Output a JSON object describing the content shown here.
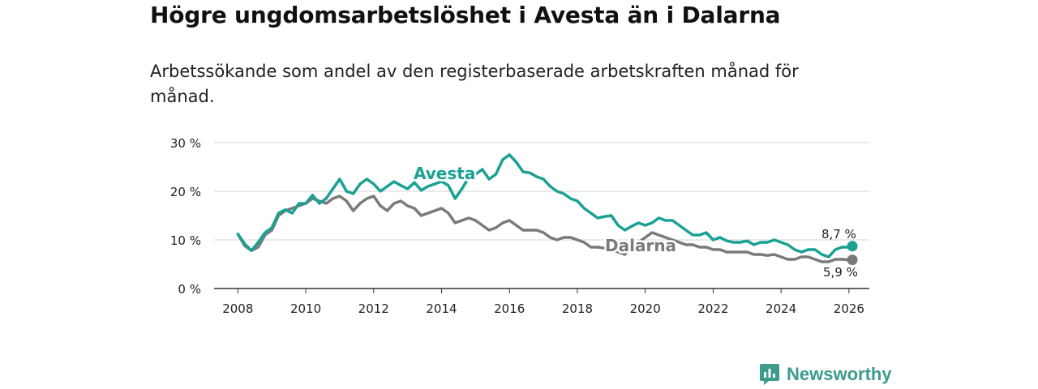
{
  "title": "Högre ungdomsarbetslöshet i Avesta än i Dalarna",
  "subtitle": "Arbetssökande som andel av den registerbaserade arbetskraften månad för månad.",
  "brand": {
    "name": "Newsworthy"
  },
  "colors": {
    "avesta": "#1aa194",
    "dalarna": "#7a7a7a",
    "grid": "#d6d6d6",
    "axis": "#333333",
    "text": "#222222"
  },
  "chart_data": {
    "type": "line",
    "title": "Högre ungdomsarbetslöshet i Avesta än i Dalarna",
    "subtitle": "Arbetssökande som andel av den registerbaserade arbetskraften månad för månad.",
    "xlabel": "",
    "ylabel": "",
    "xlim": [
      2007.3,
      2026.6
    ],
    "ylim": [
      0,
      30
    ],
    "x_ticks": [
      2008,
      2010,
      2012,
      2014,
      2016,
      2018,
      2020,
      2022,
      2024,
      2026
    ],
    "x_tick_labels": [
      "2008",
      "2010",
      "2012",
      "2014",
      "2016",
      "2018",
      "2020",
      "2022",
      "2024",
      "2026"
    ],
    "y_ticks": [
      0,
      10,
      20,
      30
    ],
    "y_tick_labels": [
      "0 %",
      "10 %",
      "20 %",
      "30 %"
    ],
    "grid": true,
    "series": [
      {
        "name": "Avesta",
        "label": "Avesta",
        "end_label": "8,7 %",
        "x": [
          2008.0,
          2008.2,
          2008.4,
          2008.6,
          2008.8,
          2009.0,
          2009.2,
          2009.4,
          2009.6,
          2009.8,
          2010.0,
          2010.2,
          2010.4,
          2010.6,
          2010.8,
          2011.0,
          2011.2,
          2011.4,
          2011.6,
          2011.8,
          2012.0,
          2012.2,
          2012.4,
          2012.6,
          2012.8,
          2013.0,
          2013.2,
          2013.4,
          2013.6,
          2013.8,
          2014.0,
          2014.2,
          2014.4,
          2014.6,
          2014.8,
          2015.0,
          2015.2,
          2015.4,
          2015.6,
          2015.8,
          2016.0,
          2016.2,
          2016.4,
          2016.6,
          2016.8,
          2017.0,
          2017.2,
          2017.4,
          2017.6,
          2017.8,
          2018.0,
          2018.2,
          2018.4,
          2018.6,
          2018.8,
          2019.0,
          2019.2,
          2019.4,
          2019.6,
          2019.8,
          2020.0,
          2020.2,
          2020.4,
          2020.6,
          2020.8,
          2021.0,
          2021.2,
          2021.4,
          2021.6,
          2021.8,
          2022.0,
          2022.2,
          2022.4,
          2022.6,
          2022.8,
          2023.0,
          2023.2,
          2023.4,
          2023.6,
          2023.8,
          2024.0,
          2024.2,
          2024.4,
          2024.6,
          2024.8,
          2025.0,
          2025.2,
          2025.4,
          2025.6,
          2025.8,
          2026.0,
          2026.1
        ],
        "values": [
          11.2,
          9.2,
          7.8,
          9.5,
          11.5,
          12.5,
          15.5,
          16.2,
          15.5,
          17.5,
          17.5,
          19.2,
          17.5,
          18.5,
          20.5,
          22.5,
          20.0,
          19.5,
          21.5,
          22.5,
          21.5,
          20.0,
          21.0,
          22.0,
          21.2,
          20.5,
          21.8,
          20.2,
          21.0,
          21.5,
          22.0,
          21.2,
          18.5,
          20.5,
          22.8,
          23.5,
          24.5,
          22.5,
          23.5,
          26.5,
          27.5,
          26.0,
          24.0,
          23.8,
          23.0,
          22.5,
          21.0,
          20.0,
          19.5,
          18.5,
          18.0,
          16.5,
          15.5,
          14.5,
          14.8,
          15.0,
          13.0,
          12.0,
          12.8,
          13.5,
          13.0,
          13.5,
          14.5,
          14.0,
          14.0,
          13.0,
          12.0,
          11.0,
          11.0,
          11.5,
          10.0,
          10.5,
          9.8,
          9.5,
          9.5,
          9.8,
          9.0,
          9.5,
          9.5,
          10.0,
          9.5,
          9.0,
          8.0,
          7.5,
          8.0,
          8.0,
          7.0,
          6.5,
          8.0,
          8.5,
          8.5,
          8.7
        ]
      },
      {
        "name": "Dalarna",
        "label": "Dalarna",
        "end_label": "5,9 %",
        "x": [
          2008.0,
          2008.2,
          2008.4,
          2008.6,
          2008.8,
          2009.0,
          2009.2,
          2009.4,
          2009.6,
          2009.8,
          2010.0,
          2010.2,
          2010.4,
          2010.6,
          2010.8,
          2011.0,
          2011.2,
          2011.4,
          2011.6,
          2011.8,
          2012.0,
          2012.2,
          2012.4,
          2012.6,
          2012.8,
          2013.0,
          2013.2,
          2013.4,
          2013.6,
          2013.8,
          2014.0,
          2014.2,
          2014.4,
          2014.6,
          2014.8,
          2015.0,
          2015.2,
          2015.4,
          2015.6,
          2015.8,
          2016.0,
          2016.2,
          2016.4,
          2016.6,
          2016.8,
          2017.0,
          2017.2,
          2017.4,
          2017.6,
          2017.8,
          2018.0,
          2018.2,
          2018.4,
          2018.6,
          2018.8,
          2019.0,
          2019.2,
          2019.4,
          2019.6,
          2019.8,
          2020.0,
          2020.2,
          2020.4,
          2020.6,
          2020.8,
          2021.0,
          2021.2,
          2021.4,
          2021.6,
          2021.8,
          2022.0,
          2022.2,
          2022.4,
          2022.6,
          2022.8,
          2023.0,
          2023.2,
          2023.4,
          2023.6,
          2023.8,
          2024.0,
          2024.2,
          2024.4,
          2024.6,
          2024.8,
          2025.0,
          2025.2,
          2025.4,
          2025.6,
          2025.8,
          2026.0,
          2026.1
        ],
        "values": [
          11.2,
          8.8,
          7.8,
          8.5,
          11.0,
          12.0,
          15.0,
          16.0,
          16.5,
          17.0,
          17.5,
          18.5,
          18.0,
          17.5,
          18.5,
          19.0,
          18.0,
          16.0,
          17.5,
          18.5,
          19.0,
          17.0,
          16.0,
          17.5,
          18.0,
          17.0,
          16.5,
          15.0,
          15.5,
          16.0,
          16.5,
          15.5,
          13.5,
          14.0,
          14.5,
          14.0,
          13.0,
          12.0,
          12.5,
          13.5,
          14.0,
          13.0,
          12.0,
          12.0,
          12.0,
          11.5,
          10.5,
          10.0,
          10.5,
          10.5,
          10.0,
          9.5,
          8.5,
          8.5,
          8.3,
          8.0,
          7.5,
          7.0,
          8.5,
          9.5,
          10.5,
          11.5,
          11.0,
          10.5,
          10.0,
          9.5,
          9.0,
          9.0,
          8.5,
          8.5,
          8.0,
          8.0,
          7.5,
          7.5,
          7.5,
          7.5,
          7.0,
          7.0,
          6.8,
          7.0,
          6.5,
          6.0,
          6.0,
          6.5,
          6.5,
          6.0,
          5.5,
          5.5,
          6.0,
          6.0,
          5.9,
          5.9
        ]
      }
    ]
  }
}
